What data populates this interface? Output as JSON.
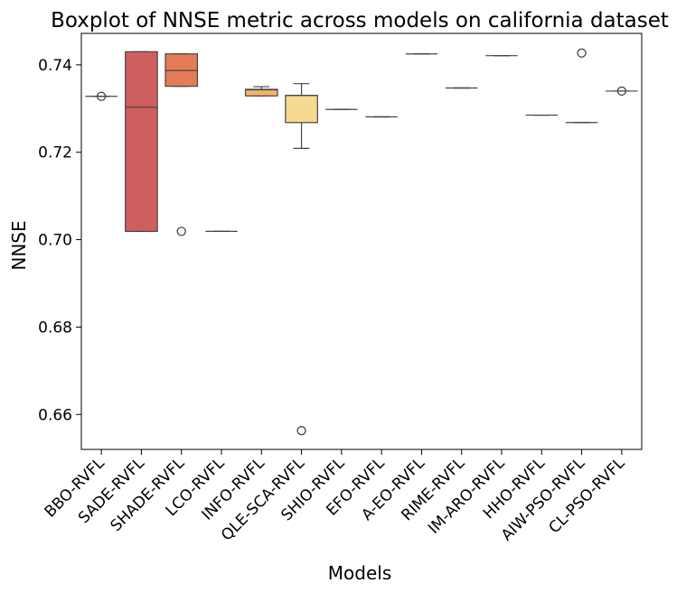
{
  "chart_data": {
    "type": "box",
    "title": "Boxplot of NNSE metric across models on california dataset",
    "xlabel": "Models",
    "ylabel": "NNSE",
    "ylim": [
      0.652,
      0.7472
    ],
    "yticks": [
      0.66,
      0.68,
      0.7,
      0.72,
      0.74
    ],
    "ytick_labels": [
      "0.66",
      "0.68",
      "0.70",
      "0.72",
      "0.74"
    ],
    "grid": false,
    "legend": "none",
    "categories": [
      "BBO-RVFL",
      "SADE-RVFL",
      "SHADE-RVFL",
      "LCO-RVFL",
      "INFO-RVFL",
      "QLE-SCA-RVFL",
      "SHIO-RVFL",
      "EFO-RVFL",
      "A-EO-RVFL",
      "RIME-RVFL",
      "IM-ARO-RVFL",
      "HHO-RVFL",
      "AIW-PSO-RVFL",
      "CL-PSO-RVFL"
    ],
    "boxes": [
      {
        "name": "BBO-RVFL",
        "color": "#d0d0d0",
        "whisker_low": 0.7328,
        "q1": 0.7328,
        "median": 0.7328,
        "q3": 0.7328,
        "whisker_high": 0.7328,
        "outliers": [
          0.7328
        ]
      },
      {
        "name": "SADE-RVFL",
        "color": "#cf5f5f",
        "whisker_low": 0.7019,
        "q1": 0.7019,
        "median": 0.7303,
        "q3": 0.743,
        "whisker_high": 0.743,
        "outliers": []
      },
      {
        "name": "SHADE-RVFL",
        "color": "#e47c57",
        "whisker_low": 0.7351,
        "q1": 0.7351,
        "median": 0.7387,
        "q3": 0.7425,
        "whisker_high": 0.7425,
        "outliers": [
          0.7019
        ]
      },
      {
        "name": "LCO-RVFL",
        "color": "#e9936b",
        "whisker_low": 0.7019,
        "q1": 0.7019,
        "median": 0.7019,
        "q3": 0.7019,
        "whisker_high": 0.7019,
        "outliers": []
      },
      {
        "name": "INFO-RVFL",
        "color": "#f3b56b",
        "whisker_low": 0.7329,
        "q1": 0.7329,
        "median": 0.7343,
        "q3": 0.7344,
        "whisker_high": 0.735,
        "outliers": []
      },
      {
        "name": "QLE-SCA-RVFL",
        "color": "#f6da90",
        "whisker_low": 0.7209,
        "q1": 0.7268,
        "median": 0.733,
        "q3": 0.733,
        "whisker_high": 0.7357,
        "outliers": [
          0.6563
        ]
      },
      {
        "name": "SHIO-RVFL",
        "color": "#f7e3a8",
        "whisker_low": 0.7298,
        "q1": 0.7298,
        "median": 0.7298,
        "q3": 0.7298,
        "whisker_high": 0.7298,
        "outliers": []
      },
      {
        "name": "EFO-RVFL",
        "color": "#f0f0f0",
        "whisker_low": 0.7281,
        "q1": 0.7281,
        "median": 0.7281,
        "q3": 0.7281,
        "whisker_high": 0.7281,
        "outliers": []
      },
      {
        "name": "A-EO-RVFL",
        "color": "#f0f0f0",
        "whisker_low": 0.7425,
        "q1": 0.7425,
        "median": 0.7425,
        "q3": 0.7425,
        "whisker_high": 0.7425,
        "outliers": []
      },
      {
        "name": "RIME-RVFL",
        "color": "#f0f0f0",
        "whisker_low": 0.7347,
        "q1": 0.7347,
        "median": 0.7347,
        "q3": 0.7347,
        "whisker_high": 0.7347,
        "outliers": []
      },
      {
        "name": "IM-ARO-RVFL",
        "color": "#f0f0f0",
        "whisker_low": 0.7421,
        "q1": 0.7421,
        "median": 0.7421,
        "q3": 0.7421,
        "whisker_high": 0.7421,
        "outliers": []
      },
      {
        "name": "HHO-RVFL",
        "color": "#f0f0f0",
        "whisker_low": 0.7285,
        "q1": 0.7285,
        "median": 0.7285,
        "q3": 0.7285,
        "whisker_high": 0.7285,
        "outliers": []
      },
      {
        "name": "AIW-PSO-RVFL",
        "color": "#f0f0f0",
        "whisker_low": 0.7268,
        "q1": 0.7268,
        "median": 0.7268,
        "q3": 0.7268,
        "whisker_high": 0.7268,
        "outliers": [
          0.7427
        ]
      },
      {
        "name": "CL-PSO-RVFL",
        "color": "#f0f0f0",
        "whisker_low": 0.734,
        "q1": 0.734,
        "median": 0.734,
        "q3": 0.734,
        "whisker_high": 0.734,
        "outliers": [
          0.734
        ]
      }
    ]
  }
}
